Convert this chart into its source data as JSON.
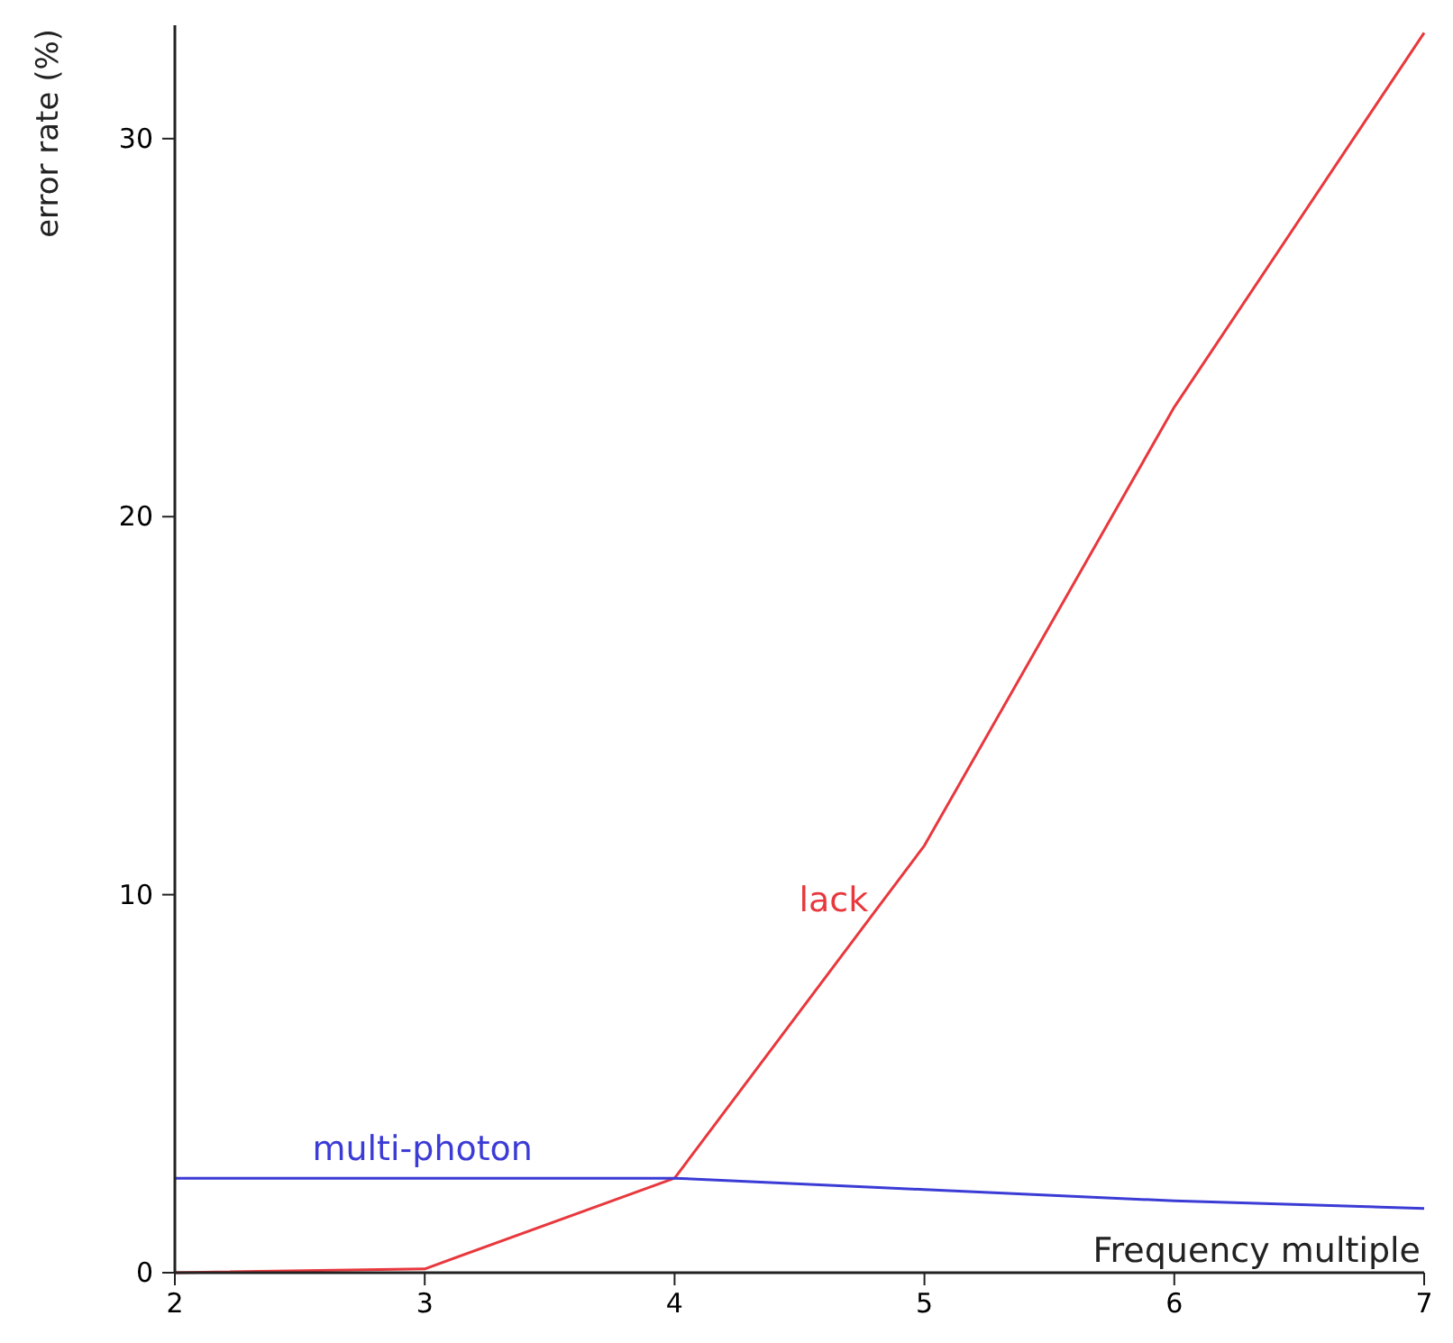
{
  "chart_data": {
    "type": "line",
    "xlabel": "Frequency multiple",
    "ylabel": "error rate (%)",
    "x": [
      2,
      3,
      4,
      5,
      6,
      7
    ],
    "series": [
      {
        "name": "lack",
        "color": "#e8383d",
        "values": [
          0,
          0.1,
          2.5,
          11.3,
          22.9,
          32.8
        ]
      },
      {
        "name": "multi-photon",
        "color": "#3b3bd6",
        "values": [
          2.5,
          2.5,
          2.5,
          2.2,
          1.9,
          1.7
        ]
      }
    ],
    "xlim": [
      2,
      7
    ],
    "xticks": [
      2,
      3,
      4,
      5,
      6,
      7
    ],
    "ylim": [
      0,
      33
    ],
    "yticks": [
      0,
      10,
      20,
      30
    ],
    "grid": false,
    "marker": "none",
    "line_style": "solid"
  }
}
